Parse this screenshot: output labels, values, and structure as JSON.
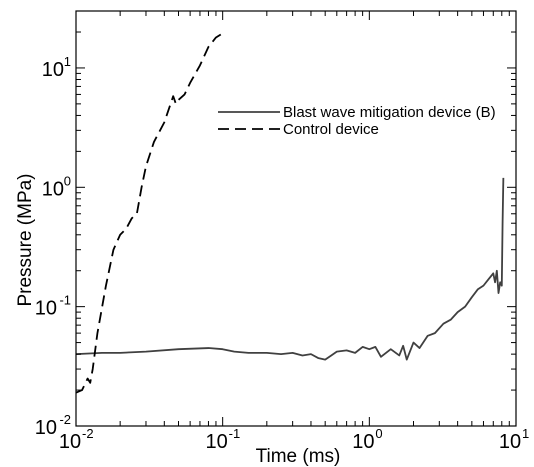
{
  "chart_data": {
    "type": "line",
    "title": "",
    "xlabel": "Time (ms)",
    "ylabel": "Pressure (MPa)",
    "xscale": "log",
    "yscale": "log",
    "xlim": [
      0.01,
      10
    ],
    "ylim": [
      0.01,
      30
    ],
    "grid": false,
    "legend_position": "top-right",
    "x_ticks": [
      {
        "base": "10",
        "exp": "-2"
      },
      {
        "base": "10",
        "exp": "-1"
      },
      {
        "base": "10",
        "exp": "0"
      },
      {
        "base": "10",
        "exp": "1"
      }
    ],
    "y_ticks": [
      {
        "base": "10",
        "exp": "-2"
      },
      {
        "base": "10",
        "exp": "-1"
      },
      {
        "base": "10",
        "exp": "0"
      },
      {
        "base": "10",
        "exp": "1"
      }
    ],
    "series": [
      {
        "name": "Blast wave mitigation device (B)",
        "style": "solid",
        "color": "#404040",
        "x": [
          0.01,
          0.015,
          0.02,
          0.03,
          0.05,
          0.08,
          0.1,
          0.12,
          0.15,
          0.2,
          0.25,
          0.3,
          0.35,
          0.4,
          0.45,
          0.5,
          0.55,
          0.6,
          0.7,
          0.8,
          0.9,
          1.0,
          1.1,
          1.2,
          1.4,
          1.6,
          1.7,
          1.8,
          2.0,
          2.2,
          2.5,
          2.8,
          3.2,
          3.6,
          4.0,
          4.5,
          5.0,
          5.5,
          6.0,
          6.5,
          7.0,
          7.2,
          7.4,
          7.6,
          7.8,
          8.0,
          8.1,
          8.2
        ],
        "y": [
          0.04,
          0.041,
          0.041,
          0.042,
          0.044,
          0.045,
          0.044,
          0.042,
          0.041,
          0.041,
          0.04,
          0.041,
          0.039,
          0.04,
          0.037,
          0.036,
          0.039,
          0.042,
          0.043,
          0.041,
          0.046,
          0.044,
          0.046,
          0.038,
          0.044,
          0.039,
          0.047,
          0.036,
          0.05,
          0.045,
          0.057,
          0.06,
          0.072,
          0.078,
          0.09,
          0.1,
          0.12,
          0.14,
          0.15,
          0.17,
          0.19,
          0.16,
          0.2,
          0.13,
          0.16,
          0.15,
          0.5,
          1.2
        ]
      },
      {
        "name": "Control device",
        "style": "dashed",
        "color": "#000000",
        "x": [
          0.01,
          0.011,
          0.012,
          0.0125,
          0.013,
          0.014,
          0.016,
          0.018,
          0.02,
          0.022,
          0.024,
          0.026,
          0.028,
          0.03,
          0.034,
          0.04,
          0.046,
          0.048,
          0.05,
          0.055,
          0.06,
          0.07,
          0.08,
          0.09,
          0.1
        ],
        "y": [
          0.019,
          0.02,
          0.025,
          0.023,
          0.03,
          0.06,
          0.15,
          0.3,
          0.4,
          0.45,
          0.55,
          0.6,
          1.0,
          1.5,
          2.4,
          3.5,
          5.8,
          5.0,
          5.4,
          6.0,
          7.5,
          10.5,
          15.0,
          18.0,
          19.5
        ]
      }
    ]
  }
}
